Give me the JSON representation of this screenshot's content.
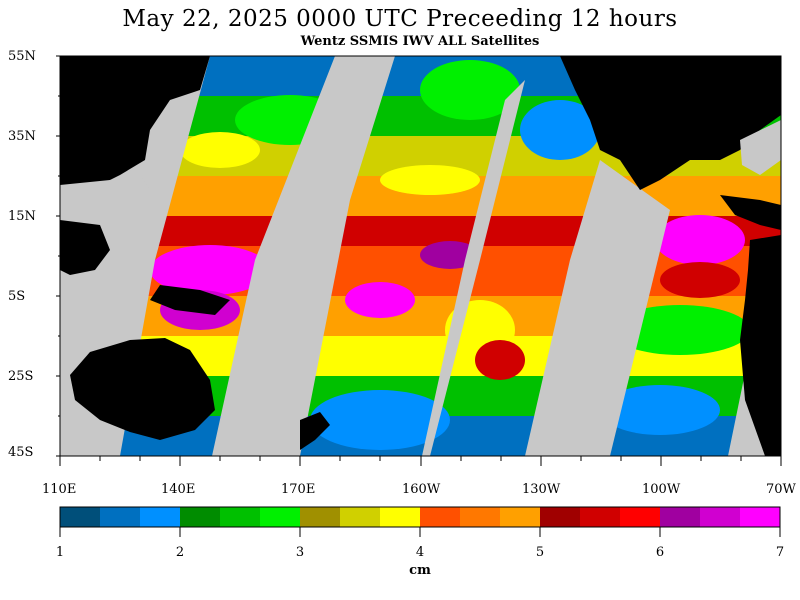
{
  "title": "May 22, 2025  0000 UTC Preceeding 12 hours",
  "subtitle": "Wentz SSMIS IWV ALL Satellites",
  "lat_labels": [
    "55N",
    "35N",
    "15N",
    "5S",
    "25S",
    "45S"
  ],
  "lon_labels": [
    "110E",
    "140E",
    "170E",
    "160W",
    "130W",
    "100W",
    "70W"
  ],
  "colorbar": {
    "unit": "cm",
    "tick_labels": [
      "1",
      "2",
      "3",
      "4",
      "5",
      "6",
      "7"
    ],
    "colors": [
      "#004f7a",
      "#0070c0",
      "#0090ff",
      "#008c00",
      "#00c000",
      "#00f000",
      "#a09000",
      "#d0d000",
      "#ffff00",
      "#ff5000",
      "#ff7800",
      "#ffa000",
      "#a00000",
      "#d00000",
      "#ff0000",
      "#a000a0",
      "#d000d0",
      "#ff00ff"
    ]
  },
  "colors": {
    "land": "#000000",
    "no_data": "#c8c8c8"
  }
}
